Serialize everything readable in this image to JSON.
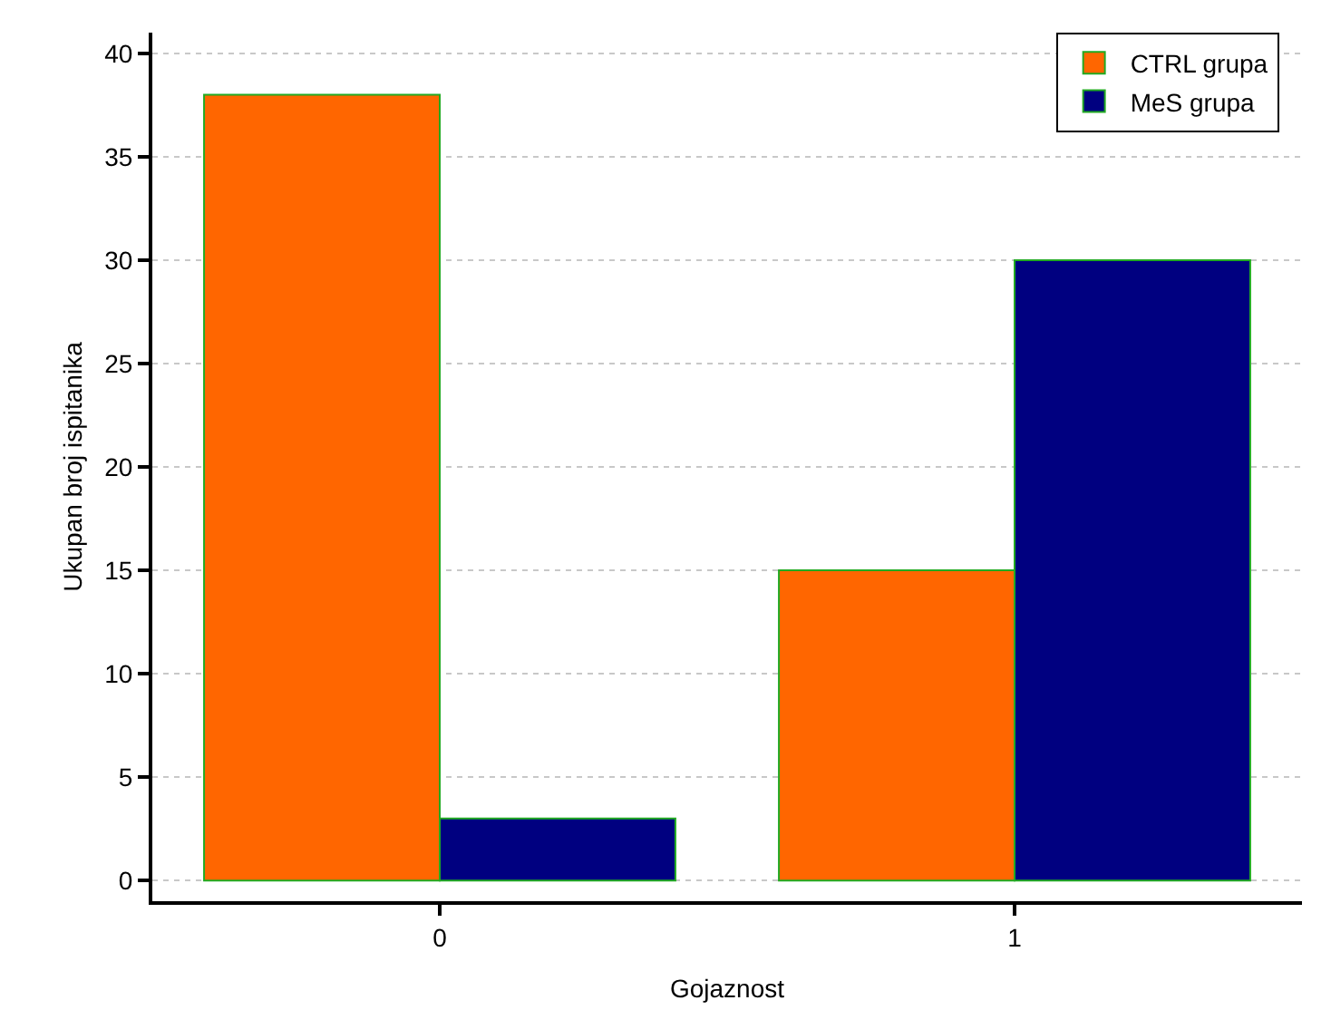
{
  "chart_data": {
    "type": "bar",
    "xlabel": "Gojaznost",
    "ylabel": "Ukupan broj ispitanika",
    "categories": [
      "0",
      "1"
    ],
    "series": [
      {
        "name": "CTRL grupa",
        "color": "#ff6600",
        "values": [
          38,
          15
        ]
      },
      {
        "name": "MeS grupa",
        "color": "#000080",
        "values": [
          3,
          30
        ]
      }
    ],
    "ylim": [
      -1,
      41
    ],
    "yticks": [
      0,
      5,
      10,
      15,
      20,
      25,
      30,
      35,
      40
    ],
    "grid": "y",
    "legend": "top right"
  }
}
